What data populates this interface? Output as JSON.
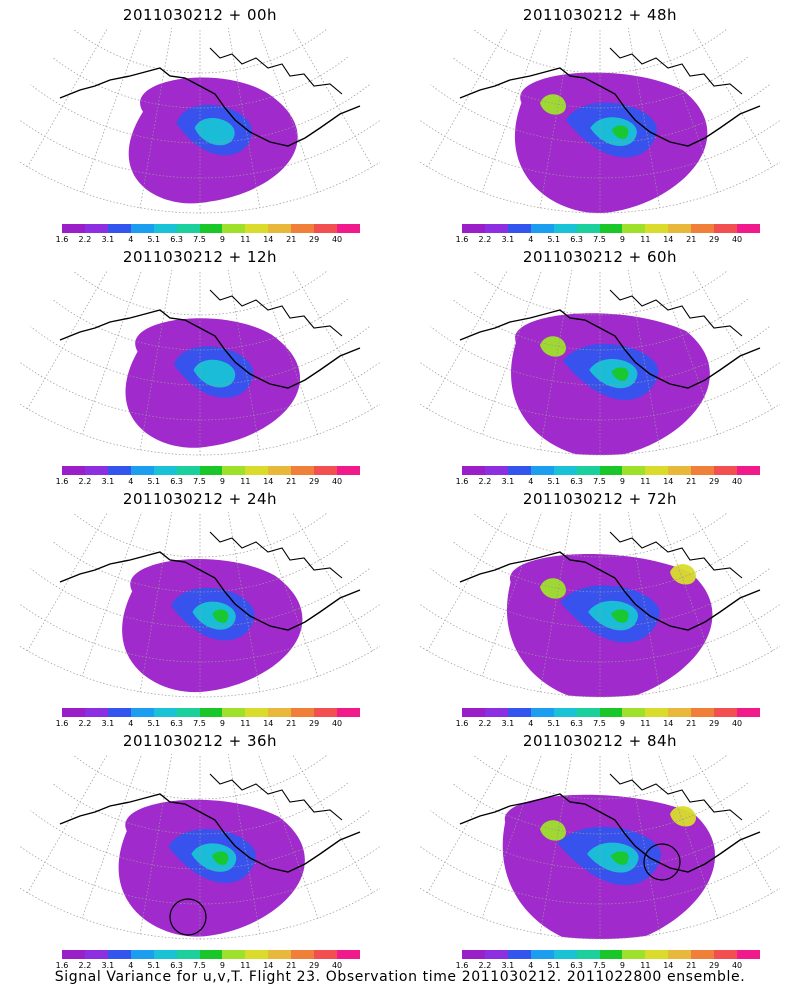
{
  "footer": "Signal Variance for u,v,T. Flight 23. Observation time 2011030212. 2011022800 ensemble.",
  "colorbar": {
    "colors": [
      "#9b1fc8",
      "#8b2fe0",
      "#3355ee",
      "#1b9ef0",
      "#19c2d6",
      "#1bd09a",
      "#19c728",
      "#9fe02a",
      "#d9dc2b",
      "#e8b83a",
      "#f07f3a",
      "#f25050",
      "#f01a8a"
    ],
    "labels": [
      "1.6",
      "2.2",
      "3.1",
      "4",
      "5.1",
      "6.3",
      "7.5",
      "9",
      "11",
      "14",
      "21",
      "29",
      "40"
    ]
  },
  "panels": [
    {
      "title": "2011030212 + 00h",
      "intensity": 0
    },
    {
      "title": "2011030212 + 12h",
      "intensity": 1
    },
    {
      "title": "2011030212 + 24h",
      "intensity": 2
    },
    {
      "title": "2011030212 + 36h",
      "intensity": 3,
      "marker": "circle"
    },
    {
      "title": "2011030212 + 48h",
      "intensity": 4
    },
    {
      "title": "2011030212 + 60h",
      "intensity": 5
    },
    {
      "title": "2011030212 + 72h",
      "intensity": 6
    },
    {
      "title": "2011030212 + 84h",
      "intensity": 7,
      "marker": "circle"
    }
  ]
}
